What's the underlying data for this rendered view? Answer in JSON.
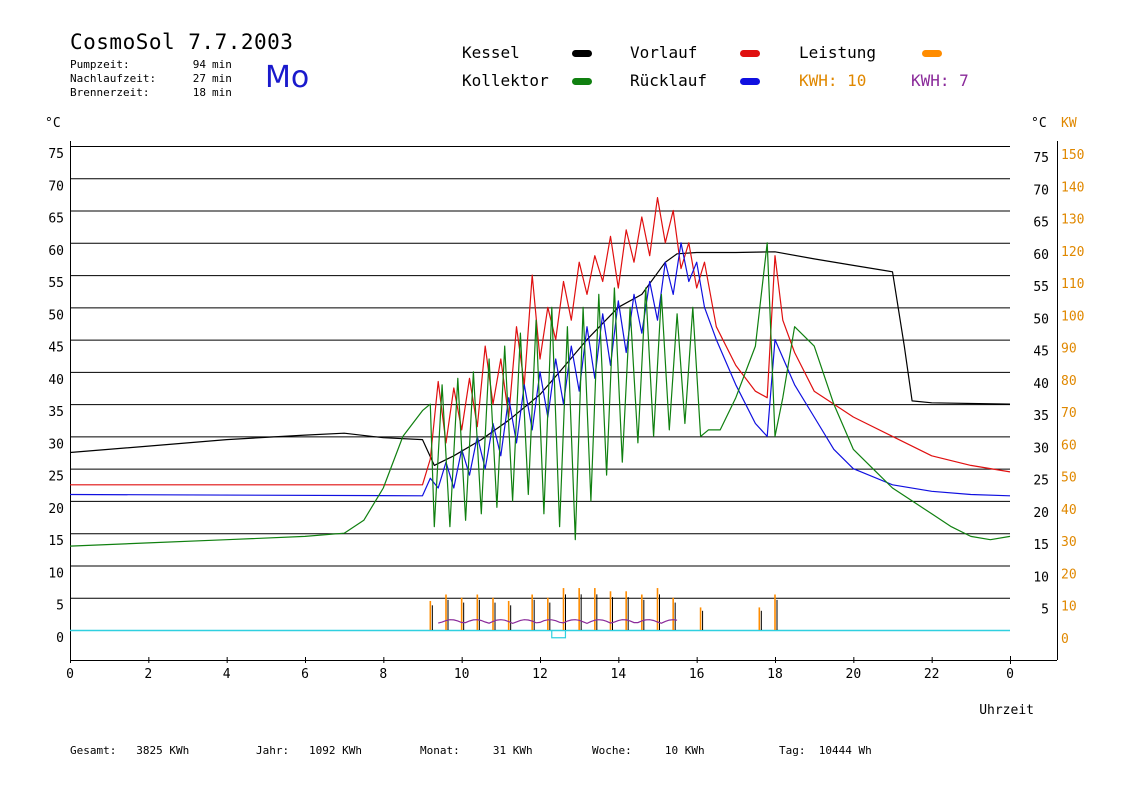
{
  "header": {
    "title": "CosmoSol 7.7.2003",
    "day": "Mo",
    "stats": [
      {
        "label": "Pumpzeit:",
        "value": "94",
        "unit": "min"
      },
      {
        "label": "Nachlaufzeit:",
        "value": "27",
        "unit": "min"
      },
      {
        "label": "Brennerzeit:",
        "value": "18",
        "unit": "min"
      }
    ]
  },
  "legend": {
    "items": [
      {
        "label": "Kessel",
        "color": "#000000"
      },
      {
        "label": "Vorlauf",
        "color": "#e01010"
      },
      {
        "label": "Leistung",
        "color": "#ff8c00"
      },
      {
        "label": "Kollektor",
        "color": "#108010"
      },
      {
        "label": "Rücklauf",
        "color": "#1010e0"
      }
    ],
    "kwh_orange": {
      "label": "KWH:",
      "value": "10",
      "color": "#e08800"
    },
    "kwh_purple": {
      "label": "KWH:",
      "value": "7",
      "color": "#8a2a9a"
    }
  },
  "footer": [
    {
      "label": "Gesamt:",
      "value": "3825 KWh"
    },
    {
      "label": "Jahr:",
      "value": "1092 KWh"
    },
    {
      "label": "Monat:",
      "value": "31 KWh"
    },
    {
      "label": "Woche:",
      "value": "10 KWh"
    },
    {
      "label": "Tag:",
      "value": "10444 Wh"
    }
  ],
  "chart_data": {
    "type": "line",
    "xlabel": "Uhrzeit",
    "ylabel_left": "°C",
    "ylabel_right": [
      "°C",
      "KW"
    ],
    "xlim": [
      0,
      24
    ],
    "ylim": [
      0,
      75
    ],
    "x_ticks": [
      "0",
      "2",
      "4",
      "6",
      "8",
      "10",
      "12",
      "14",
      "16",
      "18",
      "20",
      "22",
      "0"
    ],
    "y_ticks_left": [
      "75",
      "70",
      "65",
      "60",
      "55",
      "50",
      "45",
      "40",
      "35",
      "30",
      "25",
      "20",
      "15",
      "10",
      "5",
      "0"
    ],
    "y_ticks_right_c": [
      "75",
      "70",
      "65",
      "60",
      "55",
      "50",
      "45",
      "40",
      "35",
      "30",
      "25",
      "20",
      "15",
      "10",
      "5"
    ],
    "y_ticks_right_kw": [
      "150",
      "140",
      "130",
      "120",
      "110",
      "100",
      "90",
      "80",
      "70",
      "60",
      "50",
      "40",
      "30",
      "20",
      "10",
      "0"
    ],
    "grid": true,
    "series": [
      {
        "name": "Kessel",
        "color": "#000000",
        "x": [
          0,
          2,
          4,
          6,
          7,
          8,
          9,
          9.3,
          9.8,
          10.5,
          11.2,
          12,
          12.5,
          13.2,
          14,
          14.6,
          15.2,
          15.5,
          16,
          17,
          18,
          19,
          20,
          21,
          21.3,
          21.5,
          22,
          24
        ],
        "y": [
          27.5,
          28.5,
          29.5,
          30.2,
          30.5,
          29.8,
          29.5,
          25.5,
          27,
          29.5,
          32.5,
          36.5,
          40,
          45,
          50,
          52,
          57,
          58.3,
          58.5,
          58.5,
          58.6,
          57.5,
          56.5,
          55.5,
          44,
          35.5,
          35.2,
          35
        ]
      },
      {
        "name": "Vorlauf",
        "color": "#e01010",
        "x": [
          0,
          9,
          9.2,
          9.4,
          9.6,
          9.8,
          10,
          10.2,
          10.4,
          10.6,
          10.8,
          11,
          11.2,
          11.4,
          11.6,
          11.8,
          12,
          12.2,
          12.4,
          12.6,
          12.8,
          13,
          13.2,
          13.4,
          13.6,
          13.8,
          14,
          14.2,
          14.4,
          14.6,
          14.8,
          15,
          15.2,
          15.4,
          15.6,
          15.8,
          16,
          16.2,
          16.5,
          17,
          17.5,
          17.8,
          18,
          18.2,
          18.5,
          19,
          19.5,
          20,
          21,
          22,
          23,
          24
        ],
        "y": [
          22.5,
          22.5,
          26.5,
          38.5,
          29,
          37.5,
          31,
          39,
          31.5,
          44,
          35,
          42,
          33,
          47,
          38,
          55,
          42,
          50,
          45,
          54,
          48,
          57,
          52,
          58,
          54,
          61,
          53,
          62,
          57,
          64,
          58,
          67,
          60,
          65,
          56,
          60,
          53,
          57,
          47,
          41,
          37,
          36,
          58,
          48,
          43,
          37,
          35,
          33,
          30,
          27,
          25.5,
          24.5
        ]
      },
      {
        "name": "Rücklauf",
        "color": "#1010e0",
        "x": [
          0,
          9,
          9.2,
          9.4,
          9.6,
          9.8,
          10,
          10.2,
          10.4,
          10.6,
          10.8,
          11,
          11.2,
          11.4,
          11.6,
          11.8,
          12,
          12.2,
          12.4,
          12.6,
          12.8,
          13,
          13.2,
          13.4,
          13.6,
          13.8,
          14,
          14.2,
          14.4,
          14.6,
          14.8,
          15,
          15.2,
          15.4,
          15.6,
          15.8,
          16,
          16.2,
          16.5,
          17,
          17.5,
          17.8,
          18,
          18.5,
          19,
          19.5,
          20,
          21,
          22,
          23,
          24
        ],
        "y": [
          21,
          20.8,
          23.5,
          22,
          26,
          22,
          28,
          24,
          30,
          25,
          32,
          27,
          36,
          29,
          38,
          31,
          40,
          33,
          42,
          35,
          44,
          37,
          47,
          39,
          49,
          41,
          51,
          43,
          52,
          46,
          54,
          48,
          57,
          52,
          60,
          54,
          57,
          50,
          45,
          38,
          32,
          30,
          45,
          38,
          33,
          28,
          25,
          22.5,
          21.5,
          21,
          20.8
        ]
      },
      {
        "name": "Kollektor",
        "color": "#108010",
        "x": [
          0,
          2,
          4,
          6,
          7,
          7.5,
          8,
          8.5,
          9,
          9.2,
          9.3,
          9.5,
          9.7,
          9.9,
          10.1,
          10.3,
          10.5,
          10.7,
          10.9,
          11.1,
          11.3,
          11.5,
          11.7,
          11.9,
          12.1,
          12.3,
          12.5,
          12.7,
          12.9,
          13.1,
          13.3,
          13.5,
          13.7,
          13.9,
          14.1,
          14.3,
          14.5,
          14.7,
          14.9,
          15.1,
          15.3,
          15.5,
          15.7,
          15.9,
          16.1,
          16.3,
          16.6,
          17,
          17.5,
          17.8,
          18,
          18.2,
          18.5,
          19,
          19.5,
          20,
          20.5,
          21,
          21.5,
          22,
          22.5,
          23,
          23.5,
          24
        ],
        "y": [
          13,
          13.5,
          14,
          14.5,
          15,
          17,
          22,
          30,
          34,
          35,
          16,
          38,
          16,
          39,
          17,
          40,
          18,
          42,
          19,
          44,
          20,
          46,
          21,
          48,
          18,
          50,
          16,
          47,
          14,
          50,
          20,
          52,
          24,
          53,
          26,
          50,
          29,
          53,
          30,
          52,
          31,
          49,
          32,
          50,
          30,
          31,
          31,
          36,
          44,
          60,
          30,
          36,
          47,
          44,
          35,
          28,
          25,
          22,
          20,
          18,
          16,
          14.5,
          14,
          14.5
        ]
      },
      {
        "name": "Leistung",
        "color": "#ff8c00",
        "unit": "KW",
        "y_axis": "right_kw",
        "x": [
          9.2,
          9.6,
          10,
          10.4,
          10.8,
          11.2,
          11.8,
          12.2,
          12.6,
          13,
          13.4,
          13.8,
          14.2,
          14.6,
          15,
          15.4,
          16.1,
          17.6,
          18
        ],
        "y": [
          9,
          11,
          10,
          11,
          10,
          9,
          11,
          10,
          13,
          13,
          13,
          12,
          12,
          11,
          13,
          10,
          7,
          7,
          11
        ]
      }
    ]
  }
}
